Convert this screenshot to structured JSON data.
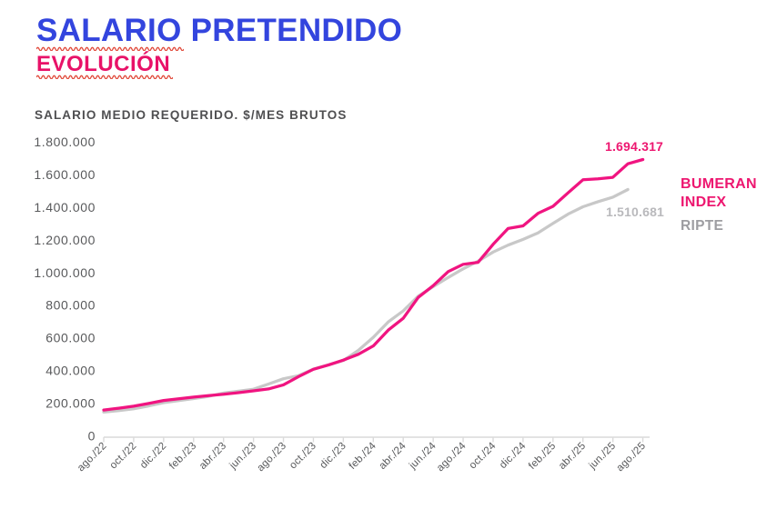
{
  "header": {
    "title_accent": "SALARIO",
    "title_rest": " PRETENDIDO",
    "subtitle": "EVOLUCIÓN"
  },
  "chart_data": {
    "type": "line",
    "title": "SALARIO MEDIO REQUERIDO. $/MES BRUTOS",
    "x_unit": "month",
    "x_tick_every": 2,
    "x_tick_labels": [
      "ago./22",
      "oct./22",
      "dic./22",
      "feb./23",
      "abr./23",
      "jun./23",
      "ago./23",
      "oct./23",
      "dic./23",
      "feb./24",
      "abr./24",
      "jun./24",
      "ago./24",
      "oct./24",
      "dic./24",
      "feb./25",
      "abr./25",
      "jun./25",
      "ago./25"
    ],
    "y_tick_labels": [
      "0",
      "200.000",
      "400.000",
      "600.000",
      "800.000",
      "1.000.000",
      "1.200.000",
      "1.400.000",
      "1.600.000",
      "1.800.000"
    ],
    "ylim": [
      0,
      1800000
    ],
    "y_step": 200000,
    "grid": false,
    "legend_position": "right",
    "series": [
      {
        "name": "BUMERAN INDEX",
        "color": "#F01480",
        "text_color": "#ED1770",
        "end_label": "1.694.317",
        "values": [
          161000,
          172000,
          184000,
          201000,
          219000,
          230000,
          240000,
          249000,
          257000,
          267000,
          278000,
          290000,
          315000,
          365000,
          410000,
          436000,
          466000,
          502000,
          553000,
          650000,
          722000,
          850000,
          922000,
          1008000,
          1053000,
          1065000,
          1175000,
          1272000,
          1288000,
          1365000,
          1408000,
          1490000,
          1570000,
          1576000,
          1585000,
          1668000,
          1694317
        ]
      },
      {
        "name": "RIPTE",
        "color": "#C8C8C8",
        "text_color": "#9D9DA1",
        "end_label": "1.510.681",
        "values": [
          148000,
          157000,
          168000,
          186000,
          206000,
          218000,
          231000,
          244000,
          265000,
          276000,
          288000,
          320000,
          352000,
          371000,
          411000,
          437000,
          464000,
          526000,
          606000,
          700000,
          768000,
          858000,
          916000,
          972000,
          1025000,
          1072000,
          1128000,
          1170000,
          1205000,
          1245000,
          1303000,
          1360000,
          1405000,
          1436000,
          1464000,
          1510681
        ]
      }
    ]
  },
  "colors": {
    "title_blue": "#3345DE",
    "subtitle_pink": "#E81268",
    "squiggle_red": "#E14B3C",
    "axis_line": "#DADADA",
    "axis_text": "#58595B",
    "end_label_gray": "#B9B9BC"
  }
}
